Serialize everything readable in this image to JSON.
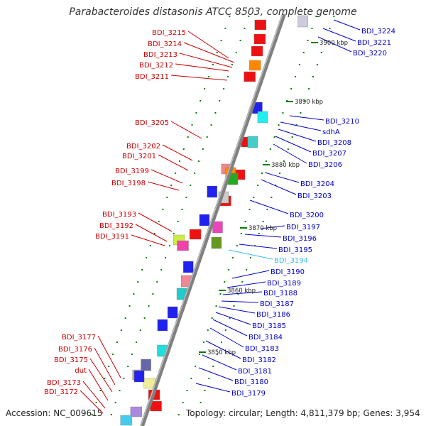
{
  "title": "Parabacteroides distasonis ATCC 8503, complete genome",
  "footer": {
    "accession": "Accession: NC_009615",
    "topology": "Topology: circular; Length: 4,811,379 bp; Genes: 3,954"
  },
  "colors": {
    "backbone": "#808080",
    "forward_label": "#cc0000",
    "reverse_label": "#0000cc",
    "highlight_label": "#33bbee",
    "tick": "#008000"
  },
  "kbp_marks": [
    "3900 kbp",
    "3890 kbp",
    "3880 kbp",
    "3870 kbp",
    "3860 kbp",
    "3850 kbp"
  ],
  "left_labels": [
    {
      "text": "BDI_3215"
    },
    {
      "text": "BDI_3214"
    },
    {
      "text": "BDI_3213"
    },
    {
      "text": "BDI_3212"
    },
    {
      "text": "BDI_3211"
    },
    {
      "text": "BDI_3205"
    },
    {
      "text": "BDI_3202"
    },
    {
      "text": "BDI_3201"
    },
    {
      "text": "BDI_3199"
    },
    {
      "text": "BDI_3198"
    },
    {
      "text": "BDI_3193"
    },
    {
      "text": "BDI_3192"
    },
    {
      "text": "BDI_3191"
    },
    {
      "text": "BDI_3177"
    },
    {
      "text": "BDI_3176"
    },
    {
      "text": "BDI_3175"
    },
    {
      "text": "dut"
    },
    {
      "text": "BDI_3173"
    },
    {
      "text": "BDI_3172"
    }
  ],
  "right_labels": [
    {
      "text": "BDI_3224"
    },
    {
      "text": "BDI_3221"
    },
    {
      "text": "BDI_3220"
    },
    {
      "text": "BDI_3210"
    },
    {
      "text": "sdhA"
    },
    {
      "text": "BDI_3208"
    },
    {
      "text": "BDI_3207"
    },
    {
      "text": "BDI_3206"
    },
    {
      "text": "BDI_3204"
    },
    {
      "text": "BDI_3203"
    },
    {
      "text": "BDI_3200"
    },
    {
      "text": "BDI_3197"
    },
    {
      "text": "BDI_3196"
    },
    {
      "text": "BDI_3195"
    },
    {
      "text": "BDI_3194",
      "highlight": true
    },
    {
      "text": "BDI_3190"
    },
    {
      "text": "BDI_3189"
    },
    {
      "text": "BDI_3188"
    },
    {
      "text": "BDI_3187"
    },
    {
      "text": "BDI_3186"
    },
    {
      "text": "BDI_3185"
    },
    {
      "text": "BDI_3184"
    },
    {
      "text": "BDI_3183"
    },
    {
      "text": "BDI_3182"
    },
    {
      "text": "BDI_3181"
    },
    {
      "text": "BDI_3180"
    },
    {
      "text": "BDI_3179"
    }
  ],
  "gene_colors": {
    "forward": [
      "#ee1111",
      "#ee1111",
      "#ee1111",
      "#ff8800",
      "#ee1111",
      "#ee1111",
      "#ee8888",
      "#ee1111",
      "#ee1111",
      "#ee1111",
      "#ccee44",
      "#ee44aa",
      "#ccaa66",
      "#eeee99",
      "#ee1111",
      "#ee1111",
      "#aa88dd",
      "#44ccee"
    ],
    "reverse": [
      "#ccccdd",
      "#2222ee",
      "#22eeee",
      "#44cccc",
      "#ff8800",
      "#22aa22",
      "#2222ee",
      "#cccccc",
      "#2222ee",
      "#ee44bb",
      "#669922",
      "#2222ee",
      "#ee8899",
      "#22cccc",
      "#2222ee",
      "#2222ee",
      "#22dddd",
      "#6666aa",
      "#2222ee"
    ]
  }
}
